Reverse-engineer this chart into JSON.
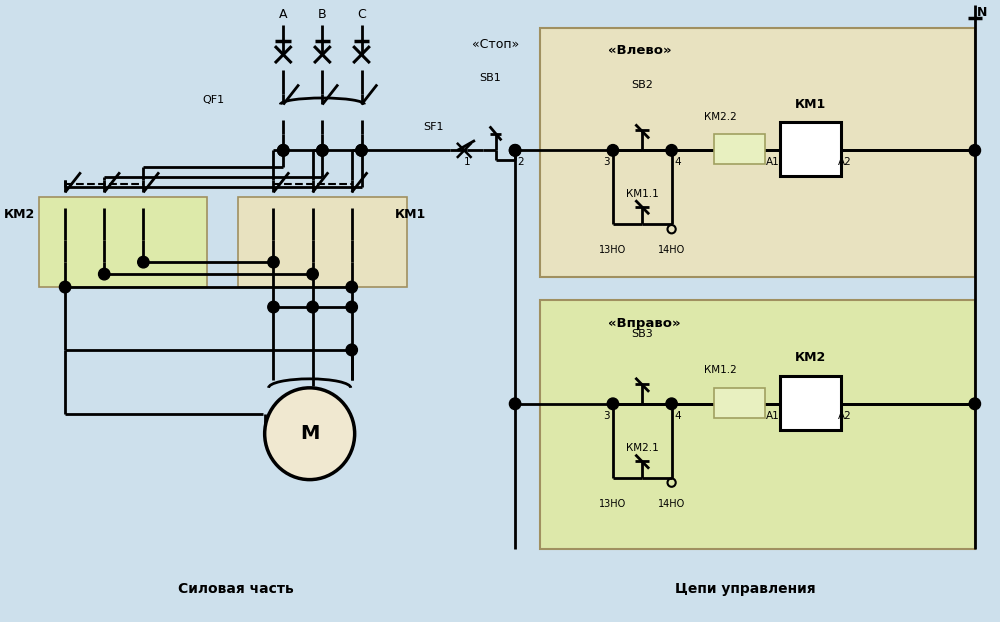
{
  "bg_color": "#cde0ec",
  "line_color": "#000000",
  "box_vlevo_color": "#e8e2c0",
  "box_vpravo_color": "#dde8aa",
  "box_km2_color": "#ddeaaa",
  "box_km1_color": "#e8e2c0",
  "motor_color": "#f0e8d0",
  "km_highlight": "#e8f0c0",
  "label_silovaya": "Силовая часть",
  "label_tsepi": "Цепи управления",
  "label_vlevo": "«Влево»",
  "label_vpravo": "«Вправо»",
  "label_stop": "«Стоп»",
  "label_N": "N",
  "label_A": "A",
  "label_B": "B",
  "label_C": "C",
  "label_QF1": "QF1",
  "label_SF1": "SF1",
  "label_SB1": "SB1",
  "label_SB2": "SB2",
  "label_SB3": "SB3",
  "label_KM1": "КМ1",
  "label_KM2": "КМ2",
  "label_KM11": "КМ1.1",
  "label_KM21": "КМ2.1",
  "label_KM22": "КМ2.2",
  "label_KM12": "КМ1.2",
  "label_M": "М",
  "label_13NO": "13НО",
  "label_14NO": "14НО",
  "label_A1": "A1",
  "label_A2": "A2",
  "label_1": "1",
  "label_2": "2",
  "label_3": "3",
  "label_4": "4"
}
